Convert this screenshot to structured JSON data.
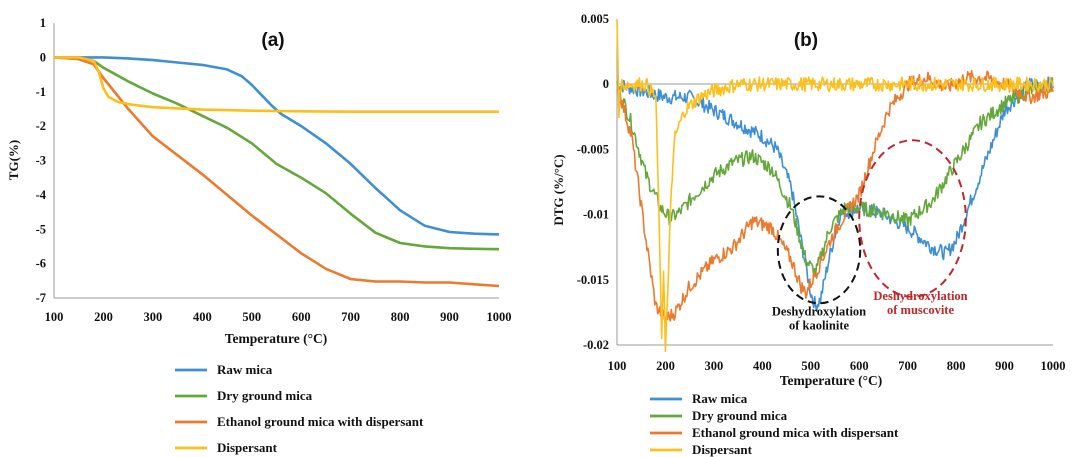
{
  "colors": {
    "raw": "#3f8fd2",
    "dry": "#64a83c",
    "eth": "#ec7a2e",
    "disp": "#fdbf1a",
    "axis": "#9a9a9a",
    "annot_kaolinite": "#111111",
    "annot_muscovite": "#c0282c"
  },
  "chart_data": [
    {
      "panel_label": "(a)",
      "type": "line",
      "xlabel": "Temperature (°C)",
      "ylabel": "TG(%)",
      "xlim": [
        100,
        1000
      ],
      "ylim": [
        -7,
        1
      ],
      "x_ticks": [
        "100",
        "200",
        "300",
        "400",
        "500",
        "600",
        "700",
        "800",
        "900",
        "1000"
      ],
      "y_ticks": [
        "1",
        "0",
        "-1",
        "-2",
        "-3",
        "-4",
        "-5",
        "-6",
        "-7"
      ],
      "legend_position": "bottom",
      "series": [
        {
          "name": "Raw mica",
          "color_key": "raw",
          "x": [
            100,
            150,
            200,
            250,
            300,
            350,
            400,
            450,
            480,
            500,
            520,
            540,
            560,
            600,
            650,
            700,
            750,
            800,
            850,
            900,
            950,
            1000
          ],
          "y": [
            0,
            0,
            0,
            -0.03,
            -0.08,
            -0.15,
            -0.22,
            -0.35,
            -0.55,
            -0.8,
            -1.1,
            -1.4,
            -1.65,
            -2.0,
            -2.5,
            -3.1,
            -3.8,
            -4.45,
            -4.9,
            -5.08,
            -5.13,
            -5.15
          ]
        },
        {
          "name": "Dry ground mica",
          "color_key": "dry",
          "x": [
            100,
            150,
            180,
            200,
            250,
            300,
            350,
            400,
            450,
            500,
            550,
            600,
            650,
            700,
            750,
            800,
            850,
            900,
            950,
            1000
          ],
          "y": [
            0,
            -0.02,
            -0.1,
            -0.3,
            -0.7,
            -1.05,
            -1.35,
            -1.7,
            -2.05,
            -2.5,
            -3.1,
            -3.5,
            -3.95,
            -4.55,
            -5.1,
            -5.4,
            -5.5,
            -5.55,
            -5.57,
            -5.58
          ]
        },
        {
          "name": "Ethanol ground mica with dispersant",
          "color_key": "eth",
          "x": [
            100,
            150,
            180,
            200,
            250,
            300,
            350,
            400,
            450,
            500,
            550,
            600,
            650,
            700,
            750,
            800,
            850,
            900,
            950,
            1000
          ],
          "y": [
            0,
            -0.05,
            -0.2,
            -0.6,
            -1.5,
            -2.3,
            -2.85,
            -3.4,
            -4.0,
            -4.6,
            -5.15,
            -5.7,
            -6.15,
            -6.45,
            -6.52,
            -6.52,
            -6.55,
            -6.55,
            -6.6,
            -6.65
          ]
        },
        {
          "name": "Dispersant",
          "color_key": "disp",
          "x": [
            100,
            150,
            180,
            190,
            200,
            210,
            230,
            260,
            300,
            400,
            500,
            600,
            700,
            800,
            900,
            1000
          ],
          "y": [
            0,
            0,
            -0.1,
            -0.4,
            -0.9,
            -1.15,
            -1.3,
            -1.38,
            -1.45,
            -1.52,
            -1.55,
            -1.57,
            -1.58,
            -1.58,
            -1.58,
            -1.58
          ]
        }
      ]
    },
    {
      "panel_label": "(b)",
      "type": "line",
      "xlabel": "Temperature (°C)",
      "ylabel": "DTG (%/°C)",
      "xlim": [
        100,
        1000
      ],
      "ylim": [
        -0.02,
        0.005
      ],
      "x_ticks": [
        "100",
        "200",
        "300",
        "400",
        "500",
        "600",
        "700",
        "800",
        "900",
        "1000"
      ],
      "y_ticks": [
        "0.005",
        "0",
        "-0.005",
        "-0.01",
        "-0.015",
        "-0.02"
      ],
      "legend_position": "bottom",
      "series": [
        {
          "name": "Raw mica",
          "color_key": "raw",
          "x": [
            100,
            150,
            200,
            250,
            300,
            350,
            400,
            430,
            460,
            480,
            500,
            510,
            520,
            540,
            560,
            600,
            650,
            700,
            750,
            780,
            800,
            850,
            900,
            950,
            1000
          ],
          "y": [
            0,
            -0.0005,
            -0.001,
            -0.001,
            -0.002,
            -0.003,
            -0.004,
            -0.005,
            -0.008,
            -0.012,
            -0.016,
            -0.017,
            -0.0165,
            -0.013,
            -0.01,
            -0.0095,
            -0.01,
            -0.011,
            -0.0125,
            -0.013,
            -0.012,
            -0.007,
            -0.002,
            0,
            0
          ]
        },
        {
          "name": "Dry ground mica",
          "color_key": "dry",
          "x": [
            100,
            130,
            160,
            190,
            210,
            230,
            260,
            300,
            340,
            380,
            420,
            460,
            490,
            510,
            540,
            570,
            600,
            650,
            700,
            750,
            800,
            850,
            900,
            950,
            1000
          ],
          "y": [
            0,
            -0.003,
            -0.007,
            -0.0095,
            -0.0103,
            -0.0098,
            -0.0085,
            -0.007,
            -0.006,
            -0.0055,
            -0.0065,
            -0.0095,
            -0.0135,
            -0.0145,
            -0.011,
            -0.0095,
            -0.0095,
            -0.0098,
            -0.0105,
            -0.009,
            -0.006,
            -0.003,
            -0.0015,
            -0.0005,
            0
          ]
        },
        {
          "name": "Ethanol ground mica with dispersant",
          "color_key": "eth",
          "x": [
            100,
            130,
            160,
            180,
            200,
            220,
            250,
            300,
            340,
            380,
            420,
            460,
            480,
            490,
            510,
            540,
            570,
            600,
            630,
            660,
            700,
            740,
            780,
            820,
            860,
            900,
            950,
            1000
          ],
          "y": [
            0,
            -0.004,
            -0.012,
            -0.017,
            -0.018,
            -0.0175,
            -0.0155,
            -0.0135,
            -0.0125,
            -0.0105,
            -0.011,
            -0.0135,
            -0.0155,
            -0.016,
            -0.0145,
            -0.012,
            -0.01,
            -0.0085,
            -0.005,
            -0.002,
            0,
            0.0005,
            -0.0003,
            0.0005,
            0.0005,
            0,
            -0.001,
            -0.0005
          ]
        },
        {
          "name": "Dispersant",
          "color_key": "disp",
          "x": [
            100,
            104,
            108,
            130,
            160,
            180,
            188,
            192,
            196,
            200,
            205,
            212,
            220,
            240,
            270,
            300,
            350,
            400,
            450,
            500,
            550,
            600,
            650,
            700,
            750,
            800,
            850,
            900,
            950,
            1000
          ],
          "y": [
            0.005,
            -0.002,
            0,
            0,
            0,
            -0.001,
            -0.012,
            -0.02,
            -0.014,
            -0.02,
            -0.016,
            -0.008,
            -0.004,
            -0.002,
            -0.001,
            -0.0005,
            0,
            0,
            0,
            0,
            0,
            0,
            0,
            0,
            0,
            0,
            0,
            0,
            0,
            0
          ]
        }
      ],
      "annotations": [
        {
          "line1": "Deshydroxylation",
          "line2": "of kaolinite",
          "color_key": "annot_kaolinite",
          "center_x": 517,
          "center_y": -0.0127,
          "rx": 85,
          "ry": 0.0041
        },
        {
          "line1": "Deshydroxylation",
          "line2": "of muscovite",
          "color_key": "annot_muscovite",
          "center_x": 710,
          "center_y": -0.0103,
          "rx": 110,
          "ry": 0.006
        }
      ]
    }
  ]
}
